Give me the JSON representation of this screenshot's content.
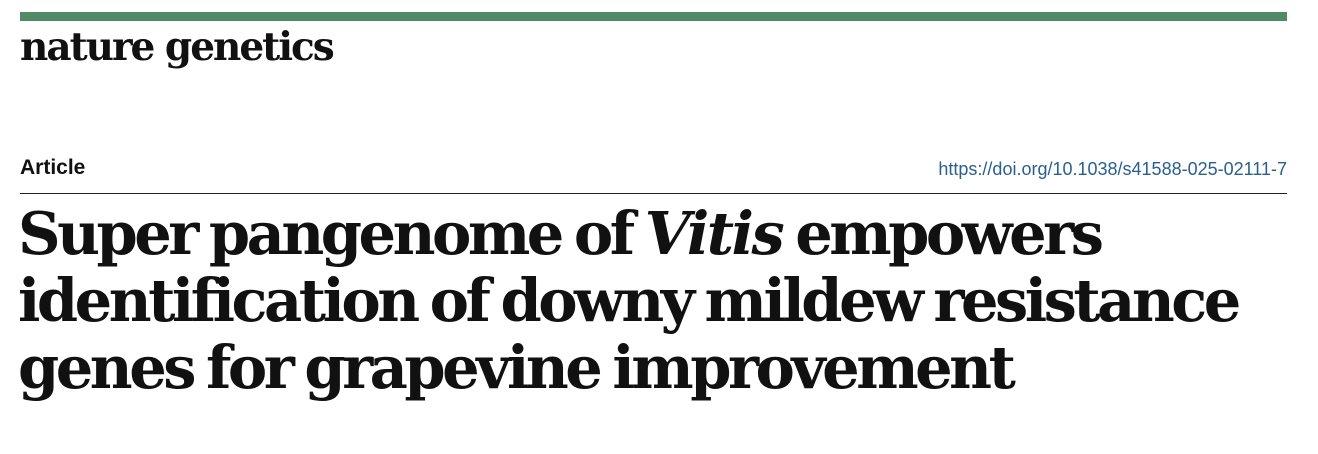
{
  "journal": {
    "name": "nature genetics",
    "brand_color": "#508a67"
  },
  "header": {
    "article_type": "Article",
    "doi": "https://doi.org/10.1038/s41588-025-02111-7",
    "link_color": "#2a5f8f"
  },
  "title": {
    "line1_before": "Super pangenome of ",
    "line1_italic": "Vitis",
    "line1_after": " empowers",
    "line2": "identification of downy mildew resistance",
    "line3": "genes for grapevine improvement"
  }
}
